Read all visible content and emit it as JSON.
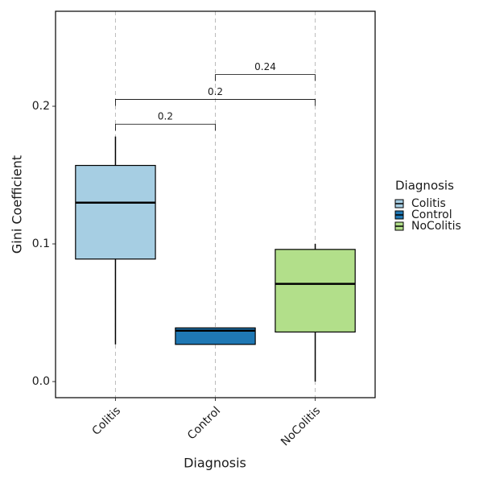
{
  "chart_data": {
    "type": "box",
    "x_label": "Diagnosis",
    "y_label": "Gini Coefficient",
    "legend_title": "Diagnosis",
    "categories": [
      "Colitis",
      "Control",
      "NoColitis"
    ],
    "colors": [
      "#a6cee3",
      "#1f78b4",
      "#b2df8a"
    ],
    "boxes": [
      {
        "min": 0.027,
        "q1": 0.089,
        "median": 0.13,
        "q3": 0.157,
        "max": 0.178
      },
      {
        "min": 0.027,
        "q1": 0.027,
        "median": 0.037,
        "q3": 0.039,
        "max": 0.039
      },
      {
        "min": 0.0,
        "q1": 0.036,
        "median": 0.071,
        "q3": 0.096,
        "max": 0.1
      }
    ],
    "comparisons": [
      {
        "from": 0,
        "to": 1,
        "y": 0.187,
        "label": "0.2"
      },
      {
        "from": 0,
        "to": 2,
        "y": 0.205,
        "label": "0.2"
      },
      {
        "from": 1,
        "to": 2,
        "y": 0.223,
        "label": "0.24"
      }
    ],
    "ylim": [
      -0.0117,
      0.269
    ],
    "yticks": [
      {
        "value": 0,
        "label": "0.0"
      },
      0.1,
      0.2
    ],
    "grid": true
  }
}
